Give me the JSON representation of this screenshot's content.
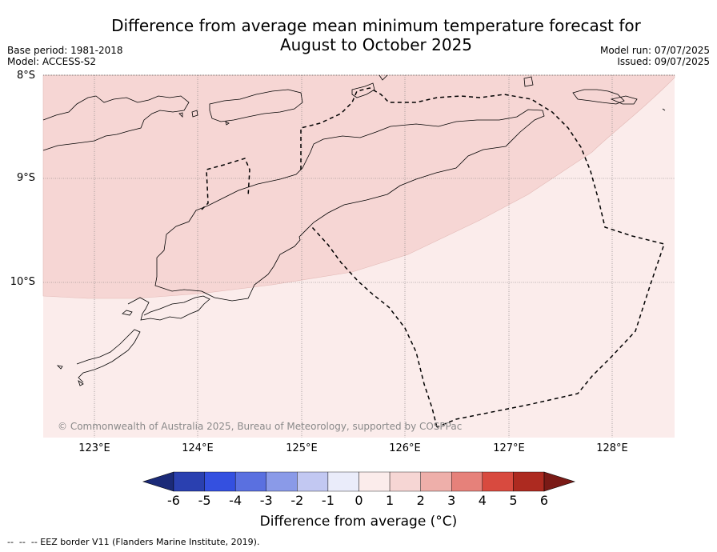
{
  "title_line1": "Difference from average mean minimum temperature forecast for",
  "title_line2": "August to October 2025",
  "base_period": "Base period: 1981-2018",
  "model": "Model: ACCESS-S2",
  "model_run": "Model run: 07/07/2025",
  "issued": "Issued: 09/07/2025",
  "lat_labels": [
    "8°S",
    "9°S",
    "10°S"
  ],
  "lon_labels": [
    "123°E",
    "124°E",
    "125°E",
    "126°E",
    "127°E",
    "128°E"
  ],
  "copyright": "© Commonwealth of Australia 2025, Bureau of Meteorology, supported by COSPPac",
  "colorbar": {
    "ticks": [
      "-6",
      "-5",
      "-4",
      "-3",
      "-2",
      "-1",
      "0",
      "1",
      "2",
      "3",
      "4",
      "5",
      "6"
    ],
    "colors": [
      "#1b2a78",
      "#2a40b0",
      "#3450e0",
      "#5a70e0",
      "#8a9ae8",
      "#c2c8f2",
      "#eaecfa",
      "#fbeceb",
      "#f6d6d4",
      "#eeafaa",
      "#e6817a",
      "#d84a3f",
      "#ad2a20",
      "#7a1a16"
    ],
    "label": "Difference from average (°C)"
  },
  "legend": {
    "eez": "-- EEZ border V11 (Flanders Marine Institute, 2019)."
  },
  "map_regions": [
    {
      "category": "1 to 2",
      "color": "#f6d6d4"
    },
    {
      "category": "0 to 1",
      "color": "#fbeceb"
    }
  ]
}
